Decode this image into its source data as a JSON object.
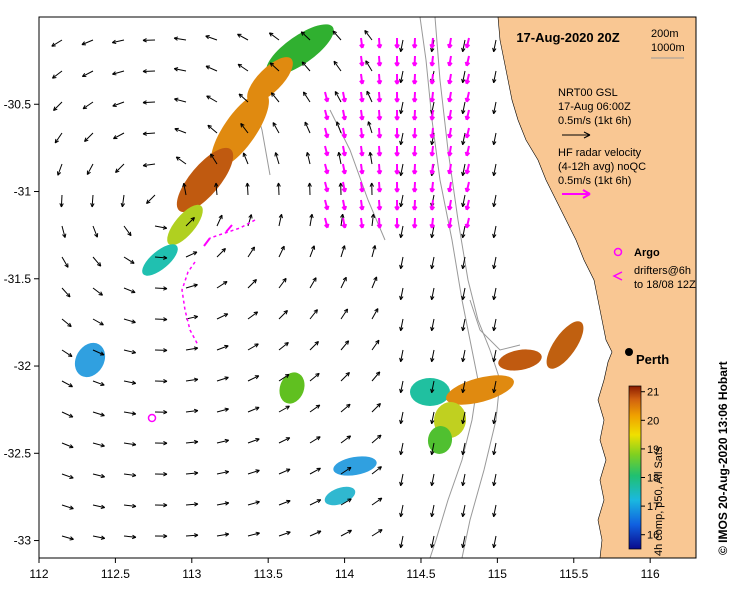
{
  "map": {
    "title": "17-Aug-2020 20Z",
    "depth_labels": [
      "200m",
      "1000m"
    ],
    "x_ticks": [
      "112",
      "112.5",
      "113",
      "113.5",
      "114",
      "114.5",
      "115",
      "115.5",
      "116"
    ],
    "y_ticks": [
      "-30.5",
      "-31",
      "-31.5",
      "-32",
      "-32.5",
      "-33"
    ],
    "lon_range": [
      112,
      116.3
    ],
    "lat_range": [
      -33.1,
      -30.0
    ]
  },
  "legend": {
    "model_lines": [
      "NRT00 GSL",
      "17-Aug 06:00Z",
      "0.5m/s (1kt 6h)"
    ],
    "radar_lines": [
      "HF radar velocity",
      "(4-12h avg) noQC",
      "0.5m/s (1kt 6h)"
    ],
    "argo_label": "Argo",
    "drifter_lines": [
      "drifters@6h",
      "to 18/08 12Z"
    ],
    "city": "Perth"
  },
  "colorbar": {
    "ticks": [
      "21",
      "20",
      "19",
      "18",
      "17",
      "16"
    ],
    "range": [
      15.5,
      21.2
    ],
    "caption": "4h comp, p50, All Sats"
  },
  "credit": "© IMOS 20-Aug-2020 13:06 Hobart",
  "colors": {
    "land": "#f9c793",
    "radar": "#ff00ff",
    "arrow": "#000000",
    "isobath": "#999999"
  }
}
